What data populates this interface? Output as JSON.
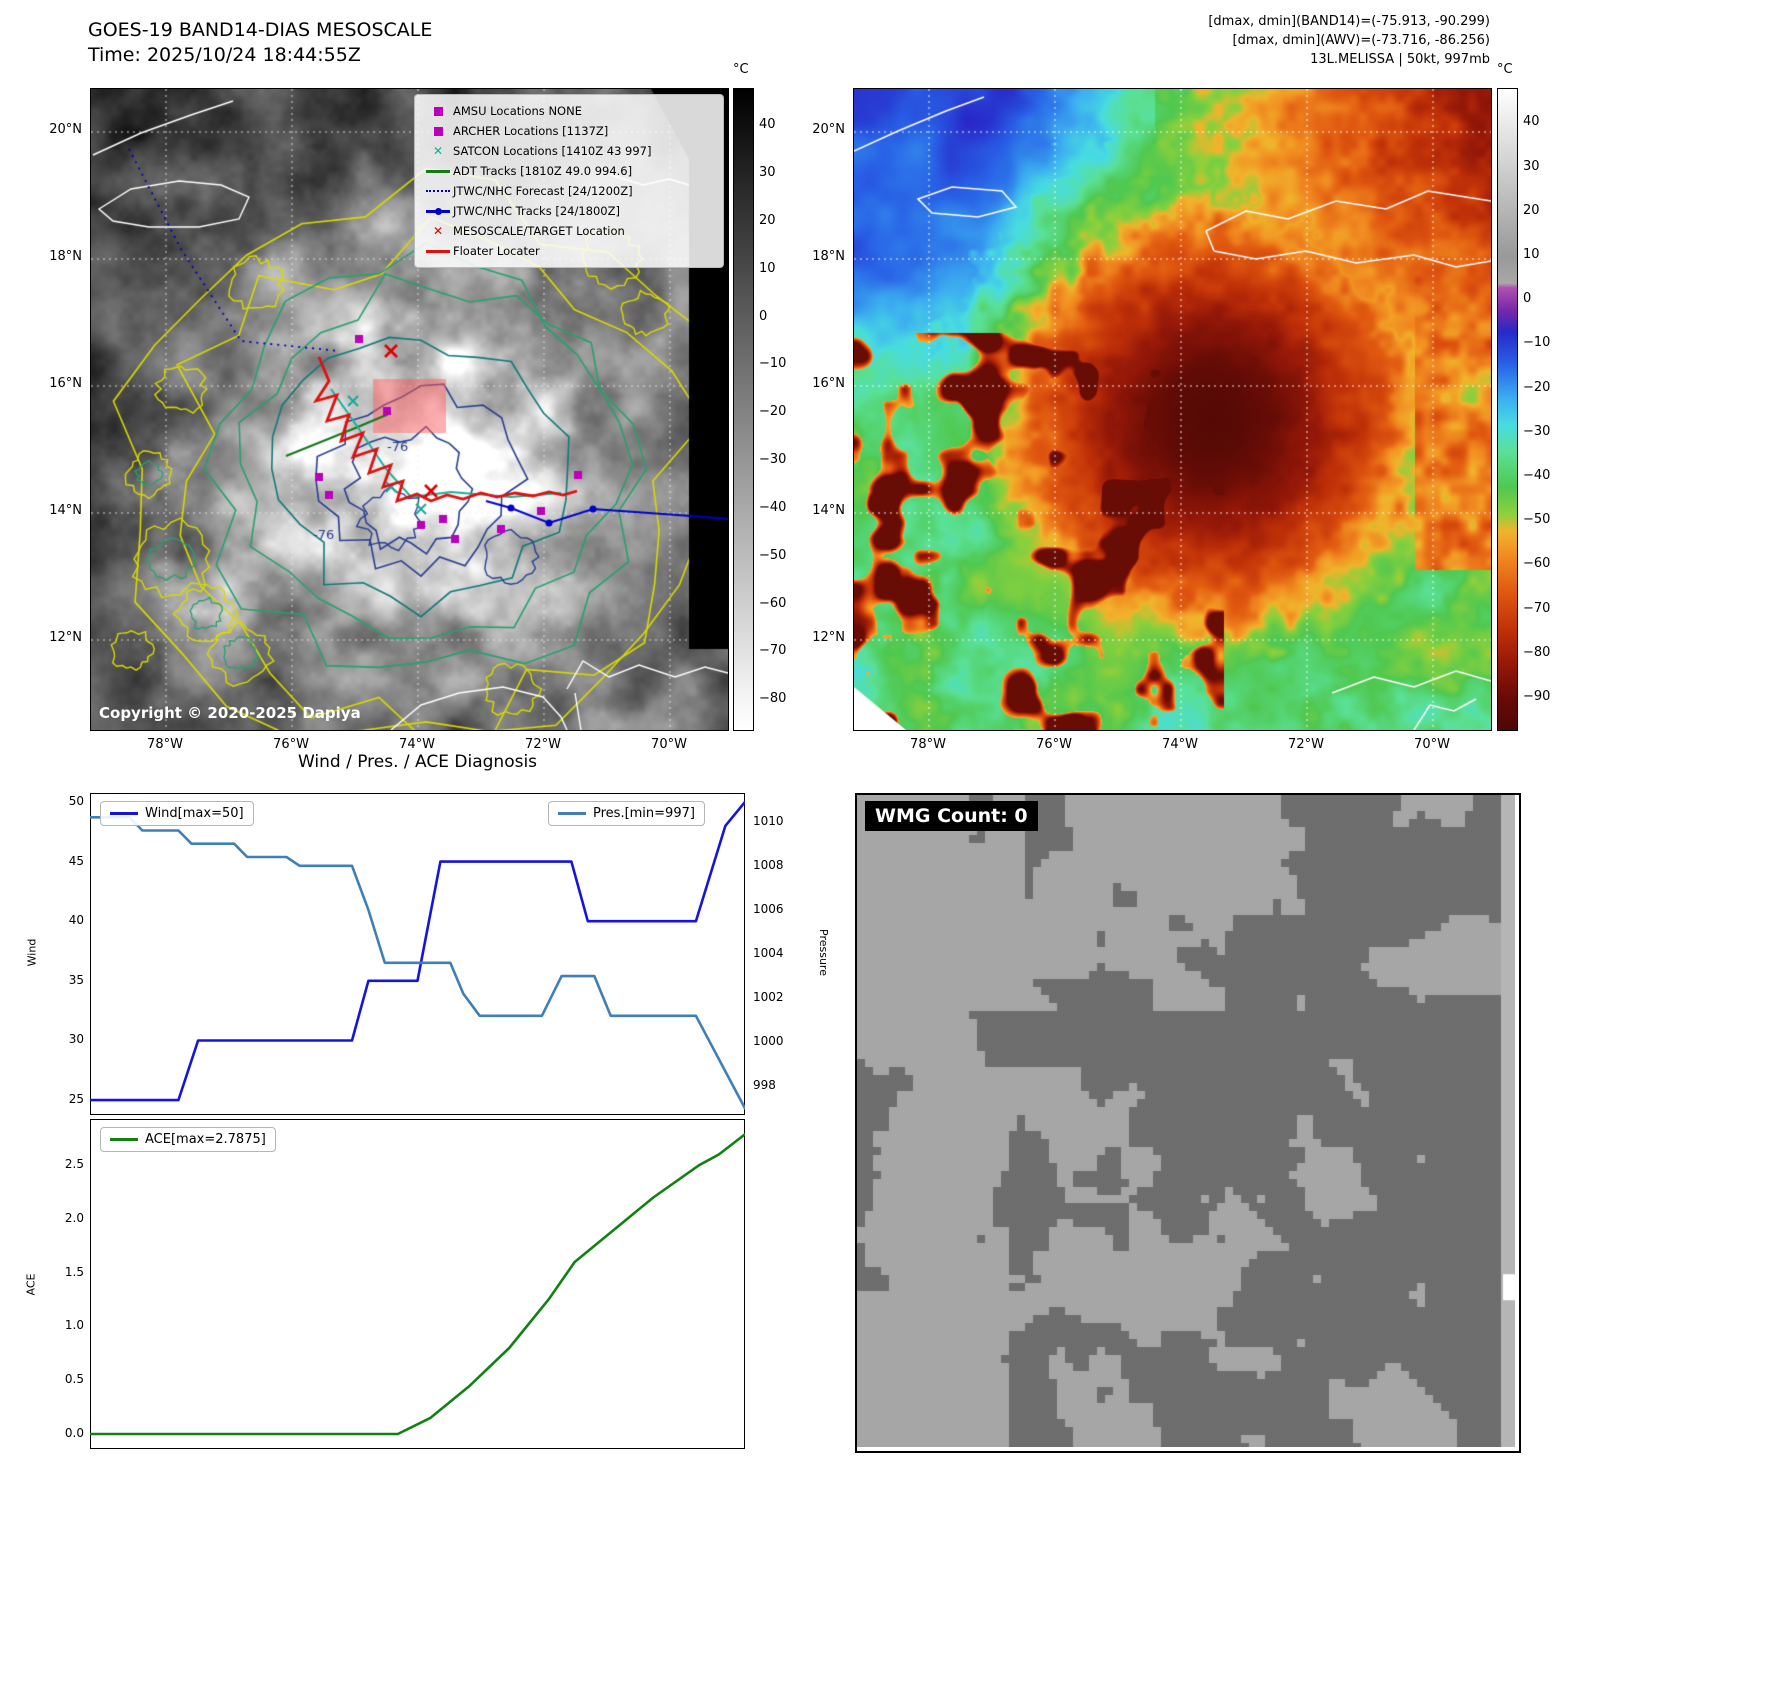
{
  "left_map": {
    "title": "GOES-19 BAND14-DIAS MESOSCALE",
    "subtitle": "Time: 2025/10/24 18:44:55Z",
    "copyright": "Copyright © 2020-2025 Dapiya",
    "colorbar": {
      "unit": "°C",
      "ticks": [
        40,
        30,
        20,
        10,
        0,
        -10,
        -20,
        -30,
        -40,
        -50,
        -60,
        -70,
        -80
      ]
    },
    "lat_ticks": [
      "20°N",
      "18°N",
      "16°N",
      "14°N",
      "12°N"
    ],
    "lon_ticks": [
      "78°W",
      "76°W",
      "74°W",
      "72°W",
      "70°W"
    ],
    "contour_labels": [
      "-76",
      "-76"
    ],
    "legend": [
      {
        "marker": "square",
        "color": "#bb00bb",
        "label": "AMSU Locations NONE"
      },
      {
        "marker": "square",
        "color": "#bb00bb",
        "label": "ARCHER Locations [1137Z]"
      },
      {
        "marker": "x",
        "color": "#18a89a",
        "label": "SATCON Locations [1410Z 43 997]"
      },
      {
        "marker": "line",
        "color": "#177817",
        "label": "ADT Tracks [1810Z 49.0 994.6]"
      },
      {
        "marker": "dotted",
        "color": "#0000bb",
        "label": "JTWC/NHC Forecast [24/1200Z]"
      },
      {
        "marker": "linedot",
        "color": "#0000cc",
        "label": "JTWC/NHC Tracks [24/1800Z]"
      },
      {
        "marker": "x",
        "color": "#dd0000",
        "label": "MESOSCALE/TARGET Location"
      },
      {
        "marker": "line",
        "color": "#e01010",
        "label": "Floater Locater"
      }
    ]
  },
  "right_map": {
    "header_line1": "[dmax, dmin](BAND14)=(-75.913, -90.299)",
    "header_line2": "[dmax, dmin](AWV)=(-73.716, -86.256)",
    "header_line3": "13L.MELISSA | 50kt, 997mb",
    "colorbar": {
      "unit": "°C",
      "ticks": [
        40,
        30,
        20,
        10,
        0,
        -10,
        -20,
        -30,
        -40,
        -50,
        -60,
        -70,
        -80,
        -90
      ]
    },
    "lat_ticks": [
      "20°N",
      "18°N",
      "16°N",
      "14°N",
      "12°N"
    ],
    "lon_ticks": [
      "78°W",
      "76°W",
      "74°W",
      "72°W",
      "70°W"
    ]
  },
  "section": {
    "title": "Wind / Pres. / ACE Diagnosis"
  },
  "wmg": {
    "label": "WMG Count: 0"
  },
  "chart_data": [
    {
      "type": "line",
      "title": "Wind / Pres. / ACE Diagnosis",
      "xlabel": "",
      "ylabel": "Wind",
      "y2label": "Pressure",
      "ylim": [
        23.75,
        50.75
      ],
      "y2lim": [
        996.7,
        1011.3
      ],
      "yticks": [
        "50",
        "45",
        "40",
        "35",
        "30",
        "25"
      ],
      "y2ticks": [
        "1010",
        "1008",
        "1006",
        "1004",
        "1002",
        "1000",
        "998"
      ],
      "grid": false,
      "series": [
        {
          "name": "Wind[max=50]",
          "axis": "y",
          "color": "#1414dc",
          "legend_position": "upper left",
          "points": [
            [
              0.0,
              25
            ],
            [
              0.135,
              25
            ],
            [
              0.165,
              30
            ],
            [
              0.4,
              30
            ],
            [
              0.425,
              35
            ],
            [
              0.5,
              35
            ],
            [
              0.535,
              45
            ],
            [
              0.735,
              45
            ],
            [
              0.76,
              40
            ],
            [
              0.925,
              40
            ],
            [
              0.97,
              48
            ],
            [
              1.0,
              50
            ]
          ]
        },
        {
          "name": "Pres.[min=997]",
          "axis": "y2",
          "color": "#3f7fb5",
          "legend_position": "upper right",
          "points": [
            [
              0.0,
              1010.2
            ],
            [
              0.06,
              1010.2
            ],
            [
              0.08,
              1009.6
            ],
            [
              0.135,
              1009.6
            ],
            [
              0.155,
              1009.0
            ],
            [
              0.22,
              1009.0
            ],
            [
              0.24,
              1008.4
            ],
            [
              0.3,
              1008.4
            ],
            [
              0.32,
              1008.0
            ],
            [
              0.4,
              1008.0
            ],
            [
              0.425,
              1006.0
            ],
            [
              0.45,
              1003.6
            ],
            [
              0.55,
              1003.6
            ],
            [
              0.57,
              1002.2
            ],
            [
              0.595,
              1001.2
            ],
            [
              0.69,
              1001.2
            ],
            [
              0.72,
              1003.0
            ],
            [
              0.77,
              1003.0
            ],
            [
              0.795,
              1001.2
            ],
            [
              0.925,
              1001.2
            ],
            [
              1.0,
              997.0
            ]
          ]
        }
      ]
    },
    {
      "type": "line",
      "title": "",
      "xlabel": "",
      "ylabel": "ACE",
      "ylim": [
        -0.14,
        2.93
      ],
      "yticks": [
        "2.5",
        "2.0",
        "1.5",
        "1.0",
        "0.5",
        "0.0"
      ],
      "grid": false,
      "series": [
        {
          "name": "ACE[max=2.7875]",
          "axis": "y",
          "color": "#128012",
          "legend_position": "upper left",
          "points": [
            [
              0.0,
              0.0
            ],
            [
              0.47,
              0.0
            ],
            [
              0.52,
              0.15
            ],
            [
              0.58,
              0.45
            ],
            [
              0.64,
              0.8
            ],
            [
              0.7,
              1.25
            ],
            [
              0.74,
              1.6
            ],
            [
              0.8,
              1.9
            ],
            [
              0.86,
              2.2
            ],
            [
              0.93,
              2.5
            ],
            [
              0.96,
              2.6
            ],
            [
              1.0,
              2.7875
            ]
          ]
        }
      ]
    }
  ]
}
